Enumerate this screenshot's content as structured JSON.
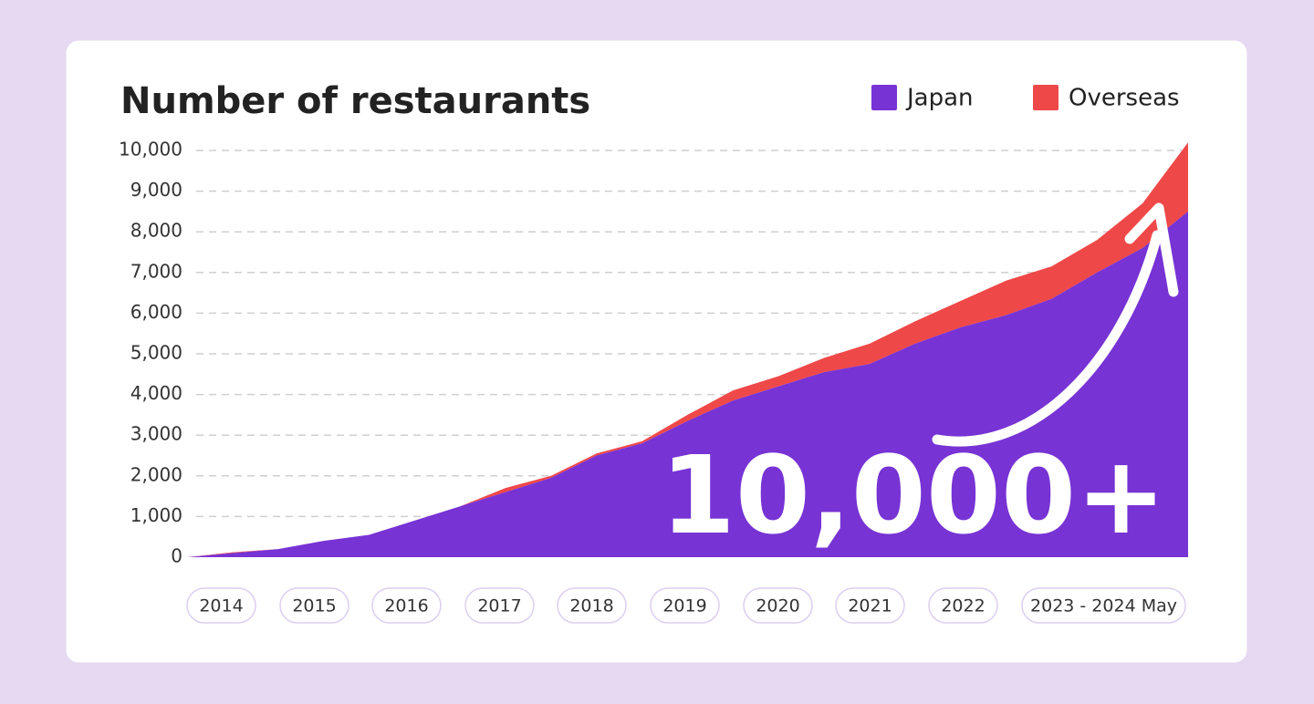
{
  "chart_data": {
    "type": "stacked_area",
    "title": "Number of restaurants",
    "annotation": "10,000+",
    "x_labels": [
      "2014",
      "2015",
      "2016",
      "2017",
      "2018",
      "2019",
      "2020",
      "2021",
      "2022",
      "2023 - 2024 May"
    ],
    "series": [
      {
        "name": "Japan",
        "color": "#7733d4",
        "values": [
          0,
          100,
          200,
          400,
          550,
          900,
          1250,
          1600,
          1950,
          2500,
          2800,
          3350,
          3850,
          4200,
          4550,
          4750,
          5250,
          5650,
          5950,
          6350,
          7000,
          7600,
          8500
        ]
      },
      {
        "name": "Overseas",
        "color": "#ef4848",
        "values": [
          0,
          20,
          0,
          0,
          0,
          0,
          0,
          100,
          50,
          50,
          50,
          150,
          250,
          250,
          350,
          500,
          550,
          650,
          850,
          800,
          800,
          1100,
          1700
        ]
      }
    ],
    "ylim": [
      0,
      10000
    ],
    "yticks": [
      0,
      {
        "value": 1000,
        "label": "1,000"
      },
      {
        "value": 2000,
        "label": "2,000"
      },
      {
        "value": 3000,
        "label": "3,000"
      },
      {
        "value": 4000,
        "label": "4,000"
      },
      {
        "value": 5000,
        "label": "5,000"
      },
      {
        "value": 6000,
        "label": "6,000"
      },
      {
        "value": 7000,
        "label": "7,000"
      },
      {
        "value": 8000,
        "label": "8,000"
      },
      {
        "value": 9000,
        "label": "9,000"
      },
      {
        "value": 10000,
        "label": "10,000"
      }
    ],
    "grid": true
  }
}
